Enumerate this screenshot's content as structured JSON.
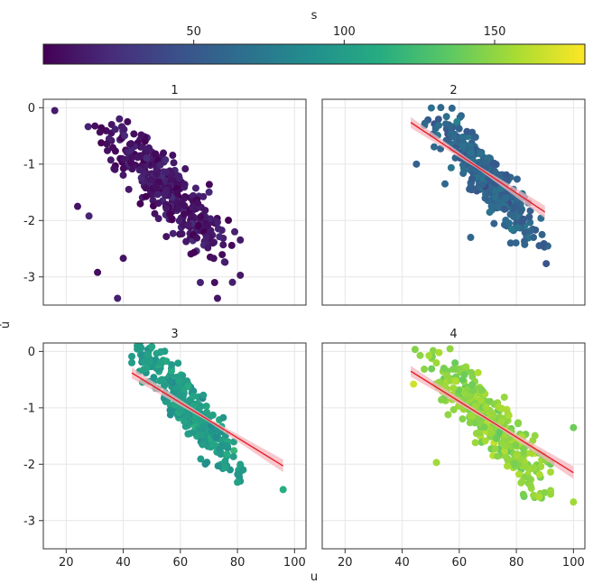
{
  "chart_data": {
    "type": "scatter",
    "facet_variable": "",
    "xlabel": "u",
    "ylabel": "u̇",
    "xlim": [
      12,
      104
    ],
    "ylim": [
      -3.5,
      0.15
    ],
    "xticks": [
      20,
      40,
      60,
      80,
      100
    ],
    "yticks": [
      0,
      -1,
      -2,
      -3
    ],
    "grid": true,
    "colorbar": {
      "label": "s",
      "range": [
        0,
        180
      ],
      "ticks": [
        50,
        100,
        150
      ],
      "colormap": "viridis",
      "position": "top"
    },
    "regression_line_color": "#e8202a",
    "regression_band_color": "#f4b6bd",
    "panels": [
      {
        "title": "1",
        "s_mean": 10,
        "cloud": {
          "center": [
            55,
            -1.45
          ],
          "spread": [
            11,
            0.55
          ],
          "slope": -0.05,
          "count": 380,
          "xrange": [
            16,
            81
          ]
        },
        "regression": null,
        "outliers": [
          [
            16,
            -0.05
          ],
          [
            31,
            -2.92
          ],
          [
            38,
            -3.38
          ],
          [
            40,
            -2.67
          ],
          [
            73,
            -3.38
          ],
          [
            72,
            -3.1
          ],
          [
            67,
            -3.1
          ],
          [
            24,
            -1.75
          ],
          [
            28,
            -1.92
          ]
        ]
      },
      {
        "title": "2",
        "s_mean": 60,
        "cloud": {
          "center": [
            70,
            -1.25
          ],
          "spread": [
            9,
            0.45
          ],
          "slope": -0.055,
          "count": 380,
          "xrange": [
            44,
            91
          ]
        },
        "regression": {
          "x": [
            43,
            90
          ],
          "y": [
            -0.26,
            -1.85
          ]
        },
        "outliers": [
          [
            45,
            -1.0
          ],
          [
            64,
            -2.3
          ],
          [
            86,
            -2.3
          ],
          [
            89,
            -2.25
          ],
          [
            55,
            -1.35
          ],
          [
            78,
            -2.4
          ]
        ]
      },
      {
        "title": "3",
        "s_mean": 100,
        "cloud": {
          "center": [
            63,
            -1.0
          ],
          "spread": [
            8,
            0.4
          ],
          "slope": -0.06,
          "count": 380,
          "xrange": [
            43,
            81
          ]
        },
        "regression": {
          "x": [
            43,
            96
          ],
          "y": [
            -0.38,
            -2.03
          ]
        },
        "outliers": [
          [
            43,
            -0.2
          ],
          [
            96,
            -2.45
          ],
          [
            81,
            -2.3
          ],
          [
            82,
            -2.1
          ],
          [
            80,
            -2.32
          ]
        ]
      },
      {
        "title": "4",
        "s_mean": 150,
        "cloud": {
          "center": [
            71,
            -1.25
          ],
          "spread": [
            10,
            0.5
          ],
          "slope": -0.05,
          "count": 380,
          "xrange": [
            42,
            92
          ]
        },
        "regression": {
          "x": [
            43,
            100
          ],
          "y": [
            -0.35,
            -2.15
          ]
        },
        "outliers": [
          [
            100,
            -1.35
          ],
          [
            100,
            -2.67
          ],
          [
            52,
            -1.97
          ],
          [
            86,
            -2.55
          ],
          [
            88,
            -2.58
          ],
          [
            44,
            -0.58
          ]
        ]
      }
    ]
  }
}
